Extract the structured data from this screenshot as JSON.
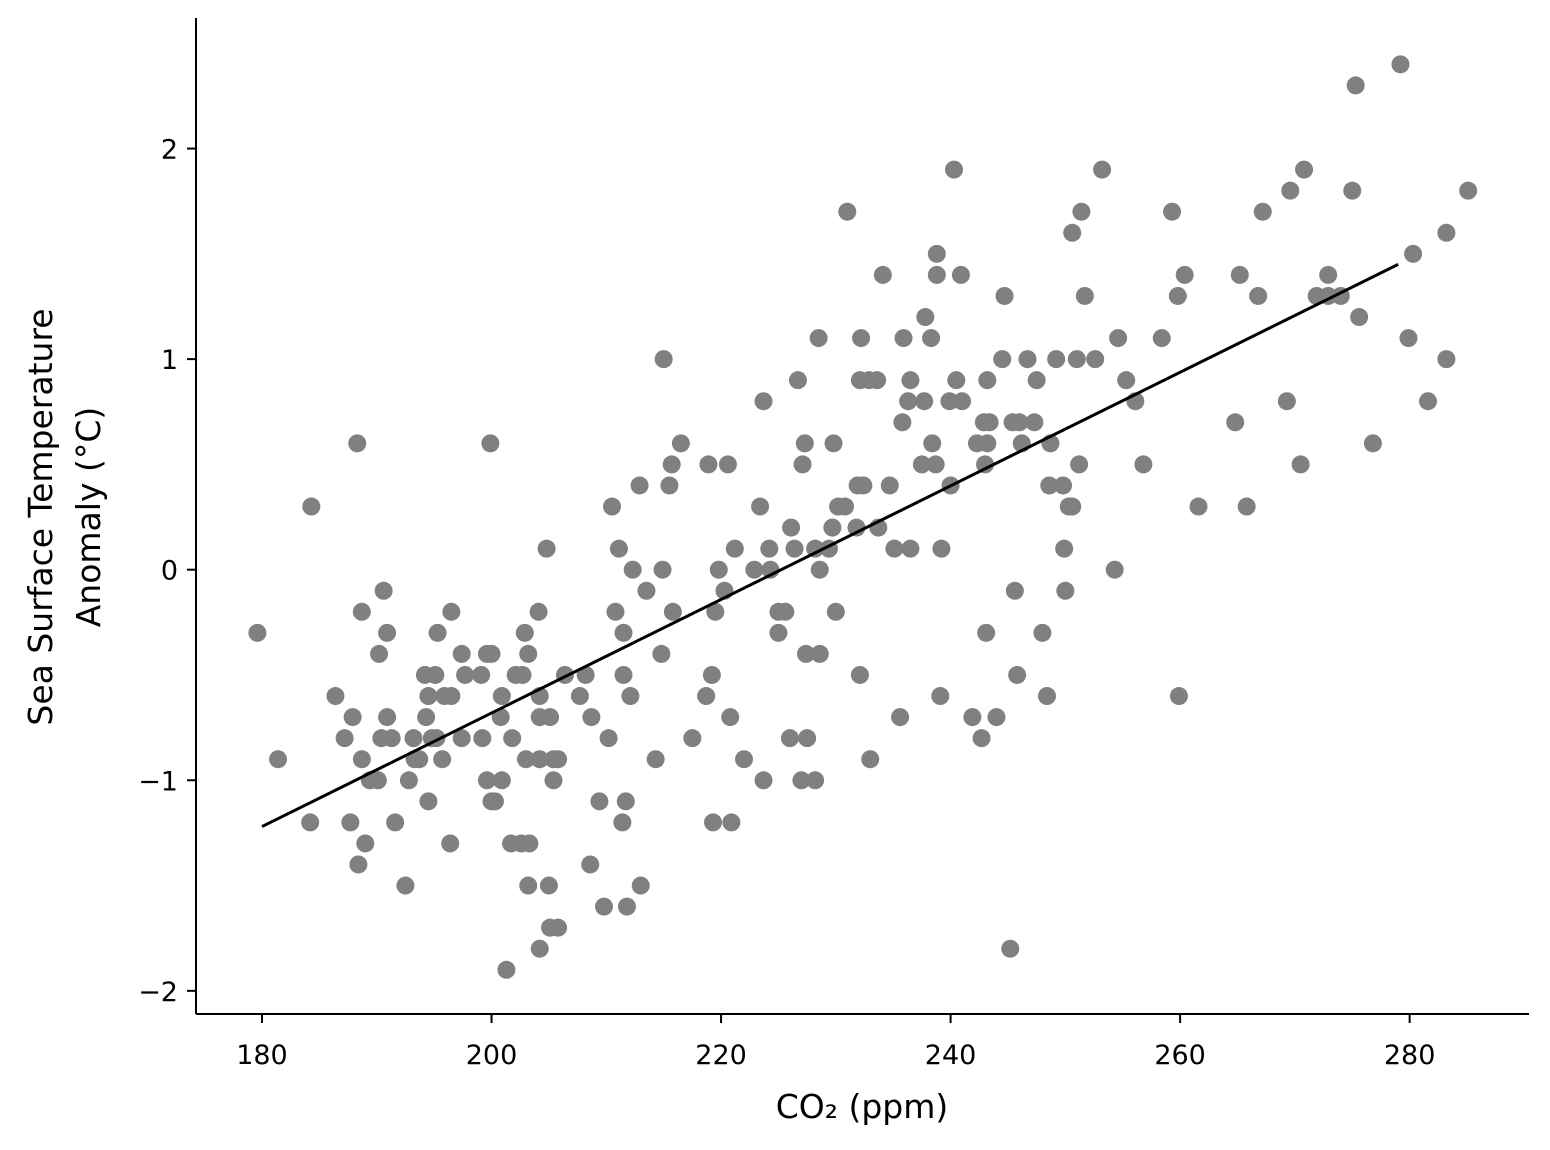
{
  "chart_data": {
    "type": "scatter",
    "xlabel": "CO₂ (ppm)",
    "ylabel": [
      "Sea Surface Temperature",
      "Anomaly (°C)"
    ],
    "xlim": [
      174.25,
      290.4
    ],
    "ylim": [
      -2.11,
      2.62
    ],
    "xticks": [
      180,
      200,
      220,
      240,
      260,
      280
    ],
    "yticks": [
      {
        "value": -2,
        "label": "−2"
      },
      {
        "value": -1,
        "label": "−1"
      },
      0,
      1,
      2
    ],
    "color": "#808080",
    "x": [
      179.6,
      181.4,
      184.3,
      184.2,
      186.4,
      187.2,
      187.7,
      187.9,
      188.3,
      188.4,
      188.7,
      188.7,
      189.0,
      189.4,
      190.1,
      190.2,
      190.4,
      190.6,
      190.9,
      190.9,
      191.3,
      191.6,
      192.5,
      192.8,
      193.2,
      193.3,
      193.7,
      194.2,
      194.3,
      194.5,
      194.5,
      194.8,
      195.1,
      195.2,
      195.3,
      195.7,
      195.9,
      196.4,
      196.5,
      196.5,
      197.4,
      197.4,
      197.7,
      199.1,
      199.2,
      199.6,
      199.6,
      199.9,
      200.0,
      200.0,
      200.3,
      200.9,
      200.9,
      200.8,
      201.3,
      201.8,
      201.7,
      202.1,
      202.6,
      202.7,
      202.9,
      203.0,
      203.2,
      203.2,
      203.3,
      204.1,
      204.2,
      204.2,
      204.2,
      204.2,
      204.8,
      205.0,
      205.1,
      205.1,
      205.4,
      205.4,
      205.8,
      205.8,
      206.4,
      207.7,
      208.2,
      208.6,
      208.7,
      209.4,
      209.8,
      210.2,
      210.5,
      210.8,
      211.1,
      211.4,
      211.5,
      211.5,
      211.7,
      211.8,
      212.1,
      212.3,
      212.9,
      213.0,
      213.5,
      214.3,
      214.8,
      214.9,
      215.0,
      215.5,
      215.7,
      215.8,
      216.5,
      217.5,
      218.7,
      218.9,
      219.2,
      219.3,
      219.5,
      219.8,
      220.3,
      220.6,
      220.8,
      220.9,
      221.2,
      222.0,
      222.9,
      223.4,
      223.7,
      223.7,
      224.2,
      224.3,
      225.0,
      225.0,
      225.6,
      226.0,
      226.1,
      226.4,
      226.7,
      227.0,
      227.1,
      227.3,
      227.4,
      227.5,
      228.2,
      228.2,
      228.5,
      228.6,
      228.6,
      229.4,
      229.7,
      229.8,
      230.0,
      230.2,
      230.8,
      231.0,
      231.8,
      231.9,
      232.1,
      232.1,
      232.2,
      232.4,
      232.9,
      233.0,
      233.6,
      233.7,
      234.1,
      234.7,
      235.1,
      235.6,
      235.8,
      235.9,
      236.3,
      236.5,
      236.5,
      237.5,
      237.7,
      237.8,
      238.3,
      238.4,
      238.7,
      238.8,
      238.8,
      239.1,
      239.2,
      239.9,
      240.0,
      240.3,
      240.5,
      240.9,
      241.0,
      241.9,
      242.3,
      242.7,
      242.9,
      243.0,
      243.1,
      243.2,
      243.2,
      243.4,
      244.0,
      244.5,
      244.7,
      245.2,
      245.4,
      245.6,
      245.8,
      246.0,
      246.2,
      246.7,
      247.3,
      247.5,
      248.0,
      248.4,
      248.6,
      248.7,
      249.2,
      249.8,
      249.9,
      250.0,
      250.3,
      250.6,
      250.6,
      251.0,
      251.2,
      251.4,
      251.7,
      252.6,
      253.2,
      254.3,
      254.6,
      255.3,
      256.1,
      256.8,
      258.4,
      259.3,
      259.8,
      259.9,
      260.4,
      261.6,
      264.8,
      265.2,
      265.8,
      266.8,
      267.2,
      269.3,
      269.6,
      270.5,
      270.8,
      271.9,
      272.9,
      272.9,
      274.0,
      275.0,
      275.3,
      275.6,
      276.8,
      279.2,
      279.9,
      280.3,
      281.6,
      283.2,
      283.2,
      285.1
    ],
    "values": [
      -0.3,
      -0.9,
      0.3,
      -1.2,
      -0.6,
      -0.8,
      -1.2,
      -0.7,
      0.6,
      -1.4,
      -0.2,
      -0.9,
      -1.3,
      -1.0,
      -1.0,
      -0.4,
      -0.8,
      -0.1,
      -0.3,
      -0.7,
      -0.8,
      -1.2,
      -1.5,
      -1.0,
      -0.8,
      -0.9,
      -0.9,
      -0.5,
      -0.7,
      -0.6,
      -1.1,
      -0.8,
      -0.5,
      -0.8,
      -0.3,
      -0.9,
      -0.6,
      -1.3,
      -0.6,
      -0.2,
      -0.4,
      -0.8,
      -0.5,
      -0.5,
      -0.8,
      -0.4,
      -1.0,
      0.6,
      -0.4,
      -1.1,
      -1.1,
      -1.0,
      -0.6,
      -0.7,
      -1.9,
      -0.8,
      -1.3,
      -0.5,
      -1.3,
      -0.5,
      -0.3,
      -0.9,
      -1.5,
      -0.4,
      -1.3,
      -0.2,
      -0.9,
      -1.8,
      -0.6,
      -0.7,
      0.1,
      -1.5,
      -0.7,
      -1.7,
      -1.0,
      -0.9,
      -1.7,
      -0.9,
      -0.5,
      -0.6,
      -0.5,
      -1.4,
      -0.7,
      -1.1,
      -1.6,
      -0.8,
      0.3,
      -0.2,
      0.1,
      -1.2,
      -0.3,
      -0.5,
      -1.1,
      -1.6,
      -0.6,
      0.0,
      0.4,
      -1.5,
      -0.1,
      -0.9,
      -0.4,
      0.0,
      1.0,
      0.4,
      0.5,
      -0.2,
      0.6,
      -0.8,
      -0.6,
      0.5,
      -0.5,
      -1.2,
      -0.2,
      0.0,
      -0.1,
      0.5,
      -0.7,
      -1.2,
      0.1,
      -0.9,
      0.0,
      0.3,
      0.8,
      -1.0,
      0.1,
      0.0,
      -0.3,
      -0.2,
      -0.2,
      -0.8,
      0.2,
      0.1,
      0.9,
      -1.0,
      0.5,
      0.6,
      -0.4,
      -0.8,
      0.1,
      -1.0,
      1.1,
      0.0,
      -0.4,
      0.1,
      0.2,
      0.6,
      -0.2,
      0.3,
      0.3,
      1.7,
      0.2,
      0.4,
      -0.5,
      0.9,
      1.1,
      0.4,
      0.9,
      -0.9,
      0.9,
      0.2,
      1.4,
      0.4,
      0.1,
      -0.7,
      0.7,
      1.1,
      0.8,
      0.9,
      0.1,
      0.5,
      0.8,
      1.2,
      1.1,
      0.6,
      0.5,
      1.5,
      1.4,
      -0.6,
      0.1,
      0.8,
      0.4,
      1.9,
      0.9,
      1.4,
      0.8,
      -0.7,
      0.6,
      -0.8,
      0.7,
      0.5,
      -0.3,
      0.9,
      0.6,
      0.7,
      -0.7,
      1.0,
      1.3,
      -1.8,
      0.7,
      -0.1,
      -0.5,
      0.7,
      0.6,
      1.0,
      0.7,
      0.9,
      -0.3,
      -0.6,
      0.4,
      0.6,
      1.0,
      0.4,
      0.1,
      -0.1,
      0.3,
      0.3,
      1.6,
      1.0,
      0.5,
      1.7,
      1.3,
      1.0,
      1.9,
      0.0,
      1.1,
      0.9,
      0.8,
      0.5,
      1.1,
      1.7,
      1.3,
      -0.6,
      1.4,
      0.3,
      0.7,
      1.4,
      0.3,
      1.3,
      1.7,
      0.8,
      1.8,
      0.5,
      1.9,
      1.3,
      1.3,
      1.4,
      1.3,
      1.8,
      2.3,
      1.2,
      0.6,
      2.4,
      1.1,
      1.5,
      0.8,
      1.6,
      1.0,
      1.8
    ],
    "fit": {
      "x": [
        180,
        279
      ],
      "values": [
        -1.22,
        1.45
      ],
      "color": "#000000"
    }
  }
}
